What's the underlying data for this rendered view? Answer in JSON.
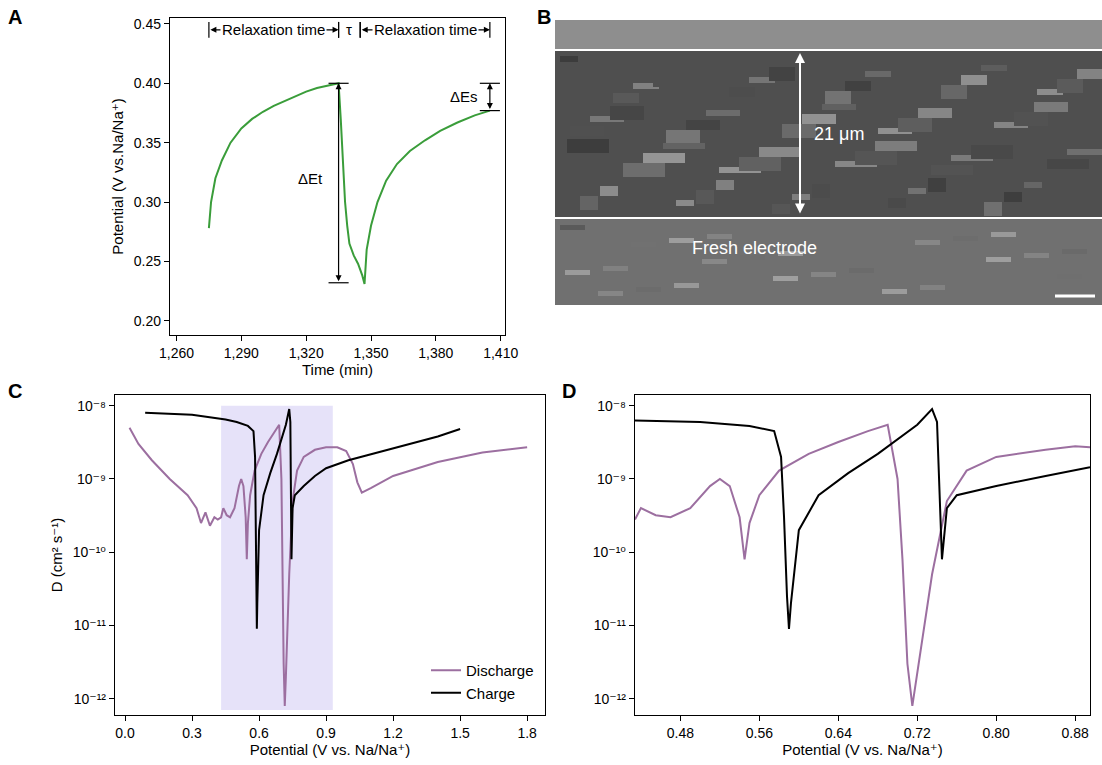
{
  "chart_data": [
    {
      "panel": "A",
      "type": "line",
      "xlabel": "Time (min)",
      "ylabel": "Potential (V vs.Na/Na⁺)",
      "xlim": [
        1257,
        1412
      ],
      "ylim": [
        0.188,
        0.455
      ],
      "xticks": [
        {
          "value": 1260,
          "label": "1,260"
        },
        {
          "value": 1290,
          "label": "1,290"
        },
        {
          "value": 1320,
          "label": "1,320"
        },
        {
          "value": 1350,
          "label": "1,350"
        },
        {
          "value": 1380,
          "label": "1,380"
        },
        {
          "value": 1410,
          "label": "1,410"
        }
      ],
      "yticks": [
        {
          "value": 0.2,
          "label": "0.20"
        },
        0.25,
        {
          "value": 0.3,
          "label": "0.30"
        },
        0.35,
        {
          "value": 0.4,
          "label": "0.40"
        },
        0.45
      ],
      "grid": false,
      "series": [
        {
          "color": "#3a9d3a",
          "x": [
            1275,
            1276,
            1278,
            1281,
            1285,
            1290,
            1295,
            1300,
            1305,
            1310,
            1315,
            1320,
            1325,
            1330,
            1335,
            1336,
            1337,
            1338,
            1339,
            1340,
            1342,
            1344,
            1346,
            1347,
            1348,
            1350,
            1353,
            1357,
            1362,
            1368,
            1375,
            1382,
            1390,
            1398,
            1405
          ],
          "values": [
            0.278,
            0.3,
            0.32,
            0.335,
            0.35,
            0.362,
            0.37,
            0.376,
            0.381,
            0.385,
            0.389,
            0.393,
            0.396,
            0.398,
            0.4,
            0.37,
            0.33,
            0.3,
            0.28,
            0.265,
            0.255,
            0.248,
            0.238,
            0.231,
            0.26,
            0.28,
            0.3,
            0.318,
            0.332,
            0.343,
            0.352,
            0.36,
            0.367,
            0.373,
            0.377
          ]
        }
      ],
      "annotations": [
        {
          "text": "Relaxation time",
          "x": 1305,
          "y": 0.445
        },
        {
          "text": "τ",
          "x": 1340,
          "y": 0.445
        },
        {
          "text": "Relaxation time",
          "x": 1375,
          "y": 0.445
        },
        {
          "text": "ΔEt",
          "x": 1322,
          "y": 0.32
        },
        {
          "text": "ΔEs",
          "x": 1393,
          "y": 0.389
        }
      ],
      "spans": [
        {
          "x0": 1275,
          "x1": 1335,
          "y": 0.445
        },
        {
          "x0": 1335,
          "x1": 1345,
          "y": 0.445
        },
        {
          "x0": 1345,
          "x1": 1405,
          "y": 0.445
        }
      ],
      "delta_bars": [
        {
          "x": 1335,
          "y0": 0.232,
          "y1": 0.4
        },
        {
          "x": 1405,
          "y0": 0.377,
          "y1": 0.4
        }
      ]
    },
    {
      "panel": "B",
      "type": "image",
      "annotations": [
        {
          "text": "21 μm"
        },
        {
          "text": "Fresh electrode"
        }
      ]
    },
    {
      "panel": "C",
      "type": "line",
      "xlabel": "Potential (V vs. Na/Na⁺)",
      "ylabel": "D (cm² s⁻¹)",
      "log": "y",
      "grid": false,
      "legend": "lower right",
      "xlim": [
        -0.045,
        1.88
      ],
      "ylim": [
        6e-13,
        1.4e-08
      ],
      "xticks": [
        {
          "value": 0,
          "label": "0.0"
        },
        0.3,
        0.6,
        0.9,
        1.2,
        1.5,
        1.8
      ],
      "yticks": [
        {
          "value": 1e-12,
          "label": "10⁻¹²"
        },
        {
          "value": 1e-11,
          "label": "10⁻¹¹"
        },
        {
          "value": 1e-10,
          "label": "10⁻¹⁰"
        },
        {
          "value": 1e-09,
          "label": "10⁻⁹"
        },
        {
          "value": 1e-08,
          "label": "10⁻⁸"
        }
      ],
      "highlight_x": [
        0.43,
        0.93
      ],
      "highlight_y": [
        7e-13,
        1e-08
      ],
      "series": [
        {
          "name": "Discharge",
          "color": "#9c6fa0",
          "x": [
            1.8,
            1.6,
            1.4,
            1.2,
            1.1,
            1.06,
            1.04,
            1.02,
            0.99,
            0.95,
            0.9,
            0.85,
            0.8,
            0.77,
            0.75,
            0.735,
            0.72,
            0.715,
            0.71,
            0.705,
            0.7,
            0.69,
            0.67,
            0.64,
            0.61,
            0.58,
            0.56,
            0.55,
            0.545,
            0.54,
            0.53,
            0.52,
            0.51,
            0.49,
            0.47,
            0.455,
            0.44,
            0.43,
            0.415,
            0.4,
            0.38,
            0.36,
            0.34,
            0.32,
            0.28,
            0.2,
            0.12,
            0.06,
            0.02
          ],
          "values": [
            2.7e-09,
            2.3e-09,
            1.7e-09,
            1.1e-09,
            7.5e-10,
            6.5e-10,
            9e-10,
            1.6e-09,
            2.4e-09,
            2.7e-09,
            2.7e-09,
            2.5e-09,
            2e-09,
            1.3e-09,
            5e-10,
            5e-11,
            2e-12,
            8e-13,
            3e-12,
            8e-11,
            1e-09,
            5.5e-09,
            4.5e-09,
            3.2e-09,
            2.2e-09,
            1.3e-09,
            6e-10,
            2.5e-10,
            8e-11,
            3e-10,
            8e-10,
            1e-09,
            8e-10,
            4e-10,
            3e-10,
            3.2e-10,
            4e-10,
            3e-10,
            2.8e-10,
            3e-10,
            2.3e-10,
            3.5e-10,
            2.5e-10,
            4e-10,
            6e-10,
            1e-09,
            1.8e-09,
            3e-09,
            5e-09
          ]
        },
        {
          "name": "Charge",
          "color": "#000000",
          "x": [
            0.09,
            0.3,
            0.45,
            0.5,
            0.55,
            0.575,
            0.582,
            0.585,
            0.588,
            0.59,
            0.592,
            0.6,
            0.62,
            0.65,
            0.68,
            0.7,
            0.72,
            0.735,
            0.74,
            0.745,
            0.75,
            0.76,
            0.8,
            0.85,
            0.9,
            1.0,
            1.2,
            1.4,
            1.5
          ],
          "values": [
            8e-09,
            7.5e-09,
            6.5e-09,
            6e-09,
            5.3e-09,
            4.5e-09,
            2e-09,
            3e-10,
            2.5e-11,
            9e-12,
            2e-11,
            2e-10,
            6e-10,
            1.2e-09,
            2.2e-09,
            3.5e-09,
            5.5e-09,
            9e-09,
            6e-09,
            8e-11,
            4e-10,
            6e-10,
            8e-10,
            1.1e-09,
            1.4e-09,
            1.8e-09,
            2.6e-09,
            3.8e-09,
            4.8e-09
          ]
        }
      ]
    },
    {
      "panel": "D",
      "type": "line",
      "xlabel": "Potential (V vs. Na/Na⁺)",
      "log": "y",
      "grid": false,
      "xlim": [
        0.434,
        0.895
      ],
      "ylim": [
        6e-13,
        1.4e-08
      ],
      "xticks": [
        0.48,
        0.56,
        0.64,
        0.72,
        {
          "value": 0.8,
          "label": "0.80"
        },
        0.88
      ],
      "yticks": [
        {
          "value": 1e-12,
          "label": "10⁻¹²"
        },
        {
          "value": 1e-11,
          "label": "10⁻¹¹"
        },
        {
          "value": 1e-10,
          "label": "10⁻¹⁰"
        },
        {
          "value": 1e-09,
          "label": "10⁻⁹"
        },
        {
          "value": 1e-08,
          "label": "10⁻⁸"
        }
      ],
      "series": [
        {
          "name": "Discharge",
          "color": "#9c6fa0",
          "x": [
            0.895,
            0.88,
            0.85,
            0.8,
            0.77,
            0.75,
            0.735,
            0.72,
            0.715,
            0.71,
            0.705,
            0.7,
            0.69,
            0.67,
            0.64,
            0.61,
            0.58,
            0.56,
            0.55,
            0.545,
            0.54,
            0.53,
            0.52,
            0.51,
            0.49,
            0.47,
            0.455,
            0.44,
            0.434
          ],
          "values": [
            2.7e-09,
            2.8e-09,
            2.5e-09,
            2e-09,
            1.3e-09,
            5e-10,
            5e-11,
            2e-12,
            8e-13,
            3e-12,
            8e-11,
            1e-09,
            5.5e-09,
            4.5e-09,
            3.2e-09,
            2.2e-09,
            1.3e-09,
            6e-10,
            2.5e-10,
            8e-11,
            3e-10,
            8e-10,
            1e-09,
            8e-10,
            4e-10,
            3e-10,
            3.2e-10,
            4e-10,
            2.8e-10
          ]
        },
        {
          "name": "Charge",
          "color": "#000000",
          "x": [
            0.434,
            0.45,
            0.5,
            0.55,
            0.575,
            0.582,
            0.585,
            0.588,
            0.59,
            0.592,
            0.6,
            0.62,
            0.65,
            0.68,
            0.7,
            0.72,
            0.735,
            0.74,
            0.745,
            0.75,
            0.76,
            0.8,
            0.85,
            0.895
          ],
          "values": [
            6.3e-09,
            6.2e-09,
            6e-09,
            5.3e-09,
            4.5e-09,
            2e-09,
            3e-10,
            2.5e-11,
            9e-12,
            2e-11,
            2e-10,
            6e-10,
            1.2e-09,
            2.2e-09,
            3.5e-09,
            5.5e-09,
            9e-09,
            6e-09,
            8e-11,
            4e-10,
            6e-10,
            8e-10,
            1.1e-09,
            1.45e-09
          ]
        }
      ]
    }
  ]
}
